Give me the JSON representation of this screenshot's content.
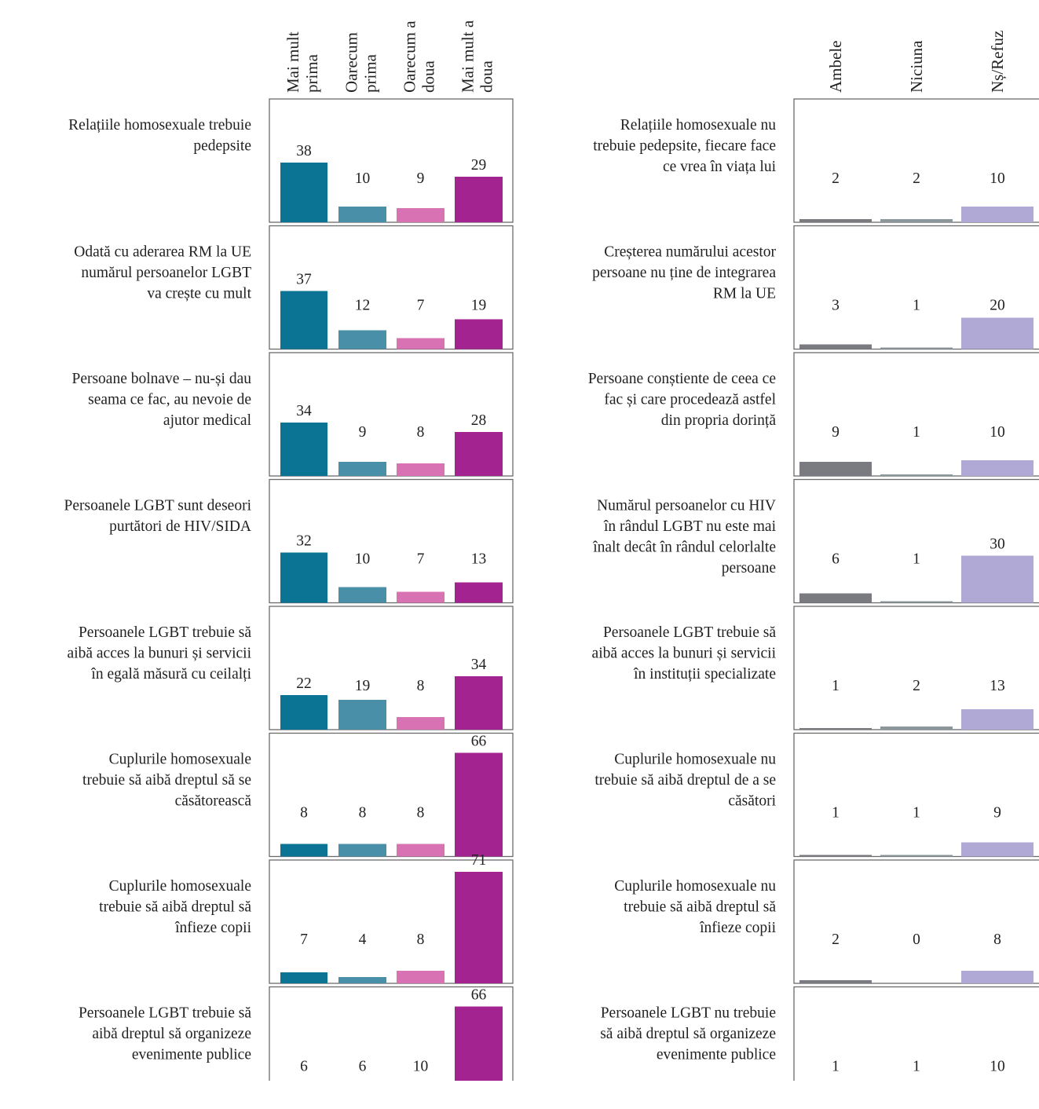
{
  "chart_data": {
    "type": "bar",
    "left_panel": {
      "categories": [
        "Mai mult prima",
        "Oarecum prima",
        "Oarecum a doua",
        "Mai mult a doua"
      ],
      "header_lines": [
        [
          "Mai mult",
          "prima"
        ],
        [
          "Oarecum",
          "prima"
        ],
        [
          "Oarecum a",
          "doua"
        ],
        [
          "Mai mult a",
          "doua"
        ]
      ],
      "colors": [
        "#0b7394",
        "#4a8fa8",
        "#d872b2",
        "#a32391"
      ],
      "ylim": [
        0,
        75
      ]
    },
    "right_panel": {
      "categories": [
        "Ambele",
        "Niciuna",
        "Nș/Refuz"
      ],
      "colors": [
        "#797b80",
        "#8b979a",
        "#b0a9d5"
      ],
      "ylim": [
        0,
        75
      ]
    },
    "rows": [
      {
        "first_statement": [
          "Relațiile homosexuale trebuie",
          "pedepsite"
        ],
        "second_statement": [
          "Relațiile homosexuale nu",
          "trebuie pedepsite, fiecare face",
          "ce vrea în viața lui"
        ],
        "left_values": [
          38,
          10,
          9,
          29
        ],
        "right_values": [
          2,
          2,
          10
        ]
      },
      {
        "first_statement": [
          "Odată cu aderarea RM la UE",
          "numărul persoanelor LGBT",
          "va crește cu mult"
        ],
        "second_statement": [
          "Creșterea numărului acestor",
          "persoane nu ține de integrarea",
          "RM la UE"
        ],
        "left_values": [
          37,
          12,
          7,
          19
        ],
        "right_values": [
          3,
          1,
          20
        ]
      },
      {
        "first_statement": [
          "Persoane bolnave – nu-și dau",
          "seama ce fac, au nevoie de",
          "ajutor medical"
        ],
        "second_statement": [
          "Persoane conștiente de ceea ce",
          "fac și care procedează astfel",
          "din propria dorință"
        ],
        "left_values": [
          34,
          9,
          8,
          28
        ],
        "right_values": [
          9,
          1,
          10
        ]
      },
      {
        "first_statement": [
          "Persoanele LGBT sunt deseori",
          "purtători de HIV/SIDA"
        ],
        "second_statement": [
          "Numărul persoanelor cu HIV",
          "în rândul LGBT nu este mai",
          "înalt decât în rândul celorlalte",
          "persoane"
        ],
        "left_values": [
          32,
          10,
          7,
          13
        ],
        "right_values": [
          6,
          1,
          30
        ]
      },
      {
        "first_statement": [
          "Persoanele LGBT trebuie să",
          "aibă acces la bunuri și servicii",
          "în egală măsură cu ceilalți"
        ],
        "second_statement": [
          "Persoanele LGBT trebuie să",
          "aibă acces la bunuri și servicii",
          "în instituții specializate"
        ],
        "left_values": [
          22,
          19,
          8,
          34
        ],
        "right_values": [
          1,
          2,
          13
        ]
      },
      {
        "first_statement": [
          "Cuplurile homosexuale",
          "trebuie să aibă dreptul să se",
          "căsătorească"
        ],
        "second_statement": [
          "Cuplurile homosexuale nu",
          "trebuie să aibă dreptul de a se",
          "căsători"
        ],
        "left_values": [
          8,
          8,
          8,
          66
        ],
        "right_values": [
          1,
          1,
          9
        ]
      },
      {
        "first_statement": [
          "Cuplurile homosexuale",
          "trebuie să aibă dreptul să",
          "înfieze copii"
        ],
        "second_statement": [
          "Cuplurile homosexuale nu",
          "trebuie să aibă dreptul să",
          "înfieze copii"
        ],
        "left_values": [
          7,
          4,
          8,
          71
        ],
        "right_values": [
          2,
          0,
          8
        ]
      },
      {
        "first_statement": [
          "Persoanele LGBT trebuie să",
          "aibă dreptul să organizeze",
          "evenimente publice"
        ],
        "second_statement": [
          "Persoanele LGBT nu trebuie",
          "să aibă dreptul să organizeze",
          "evenimente publice"
        ],
        "left_values": [
          6,
          6,
          10,
          66
        ],
        "right_values": [
          1,
          1,
          10
        ]
      }
    ]
  }
}
